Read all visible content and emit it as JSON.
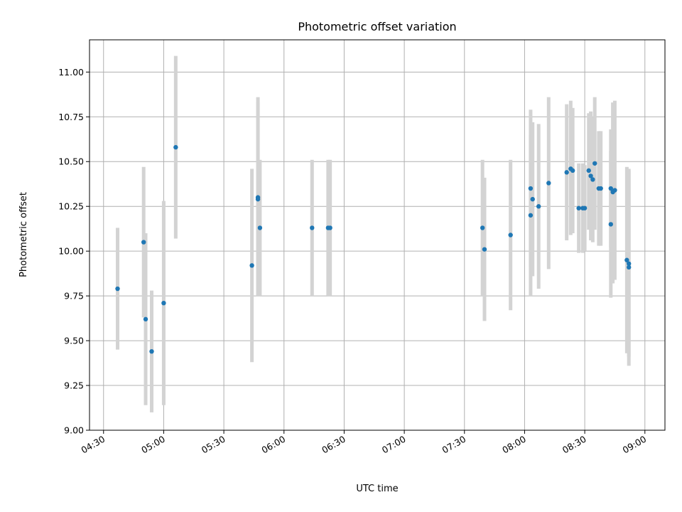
{
  "chart_data": {
    "type": "scatter",
    "title": "Photometric offset variation",
    "xlabel": "UTC time",
    "ylabel": "Photometric offset",
    "grid": true,
    "x_unit": "time of day (HH:MM)",
    "xlim": [
      "04:23",
      "09:10"
    ],
    "ylim": [
      9.0,
      11.18
    ],
    "x_ticks": [
      "04:30",
      "05:00",
      "05:30",
      "06:00",
      "06:30",
      "07:00",
      "07:30",
      "08:00",
      "08:30",
      "09:00"
    ],
    "y_ticks": [
      9.0,
      9.25,
      9.5,
      9.75,
      10.0,
      10.25,
      10.5,
      10.75,
      11.0
    ],
    "y_tick_labels": [
      "9.00",
      "9.25",
      "9.50",
      "9.75",
      "10.00",
      "10.25",
      "10.50",
      "10.75",
      "11.00"
    ],
    "point_color": "#1f77b4",
    "errorbar_color": "#d3d3d3",
    "points": [
      {
        "x": "04:37",
        "y": 9.79,
        "ylow": 9.45,
        "yhigh": 10.13
      },
      {
        "x": "04:50",
        "y": 10.05,
        "ylow": 9.63,
        "yhigh": 10.47
      },
      {
        "x": "04:51",
        "y": 9.62,
        "ylow": 9.14,
        "yhigh": 10.1
      },
      {
        "x": "04:54",
        "y": 9.44,
        "ylow": 9.1,
        "yhigh": 9.78
      },
      {
        "x": "05:00",
        "y": 9.71,
        "ylow": 9.14,
        "yhigh": 10.28
      },
      {
        "x": "05:06",
        "y": 10.58,
        "ylow": 10.07,
        "yhigh": 11.09
      },
      {
        "x": "05:44",
        "y": 9.92,
        "ylow": 9.38,
        "yhigh": 10.46
      },
      {
        "x": "05:47",
        "y": 10.29,
        "ylow": 9.75,
        "yhigh": 10.83
      },
      {
        "x": "05:47",
        "y": 10.3,
        "ylow": 9.75,
        "yhigh": 10.86
      },
      {
        "x": "05:48",
        "y": 10.13,
        "ylow": 9.75,
        "yhigh": 10.51
      },
      {
        "x": "06:14",
        "y": 10.13,
        "ylow": 9.75,
        "yhigh": 10.51
      },
      {
        "x": "06:22",
        "y": 10.13,
        "ylow": 9.75,
        "yhigh": 10.51
      },
      {
        "x": "06:23",
        "y": 10.13,
        "ylow": 9.75,
        "yhigh": 10.51
      },
      {
        "x": "07:39",
        "y": 10.13,
        "ylow": 9.75,
        "yhigh": 10.51
      },
      {
        "x": "07:40",
        "y": 10.01,
        "ylow": 9.61,
        "yhigh": 10.41
      },
      {
        "x": "07:53",
        "y": 10.09,
        "ylow": 9.67,
        "yhigh": 10.51
      },
      {
        "x": "08:03",
        "y": 10.2,
        "ylow": 9.75,
        "yhigh": 10.65
      },
      {
        "x": "08:03",
        "y": 10.35,
        "ylow": 9.91,
        "yhigh": 10.79
      },
      {
        "x": "08:04",
        "y": 10.29,
        "ylow": 9.86,
        "yhigh": 10.72
      },
      {
        "x": "08:07",
        "y": 10.25,
        "ylow": 9.79,
        "yhigh": 10.71
      },
      {
        "x": "08:12",
        "y": 10.38,
        "ylow": 9.9,
        "yhigh": 10.86
      },
      {
        "x": "08:21",
        "y": 10.44,
        "ylow": 10.06,
        "yhigh": 10.82
      },
      {
        "x": "08:23",
        "y": 10.46,
        "ylow": 10.09,
        "yhigh": 10.84
      },
      {
        "x": "08:24",
        "y": 10.45,
        "ylow": 10.1,
        "yhigh": 10.8
      },
      {
        "x": "08:27",
        "y": 10.24,
        "ylow": 9.99,
        "yhigh": 10.49
      },
      {
        "x": "08:29",
        "y": 10.24,
        "ylow": 9.99,
        "yhigh": 10.49
      },
      {
        "x": "08:30",
        "y": 10.24,
        "ylow": 10.0,
        "yhigh": 10.48
      },
      {
        "x": "08:32",
        "y": 10.45,
        "ylow": 10.12,
        "yhigh": 10.77
      },
      {
        "x": "08:33",
        "y": 10.42,
        "ylow": 10.06,
        "yhigh": 10.78
      },
      {
        "x": "08:34",
        "y": 10.4,
        "ylow": 10.05,
        "yhigh": 10.75
      },
      {
        "x": "08:35",
        "y": 10.49,
        "ylow": 10.12,
        "yhigh": 10.86
      },
      {
        "x": "08:37",
        "y": 10.35,
        "ylow": 10.03,
        "yhigh": 10.67
      },
      {
        "x": "08:38",
        "y": 10.35,
        "ylow": 10.03,
        "yhigh": 10.67
      },
      {
        "x": "08:43",
        "y": 10.35,
        "ylow": 10.02,
        "yhigh": 10.68
      },
      {
        "x": "08:43",
        "y": 10.15,
        "ylow": 9.74,
        "yhigh": 10.56
      },
      {
        "x": "08:44",
        "y": 10.33,
        "ylow": 9.82,
        "yhigh": 10.83
      },
      {
        "x": "08:45",
        "y": 10.34,
        "ylow": 9.84,
        "yhigh": 10.84
      },
      {
        "x": "08:51",
        "y": 9.95,
        "ylow": 9.43,
        "yhigh": 10.47
      },
      {
        "x": "08:52",
        "y": 9.93,
        "ylow": 9.41,
        "yhigh": 10.45
      },
      {
        "x": "08:52",
        "y": 9.91,
        "ylow": 9.36,
        "yhigh": 10.46
      }
    ]
  }
}
